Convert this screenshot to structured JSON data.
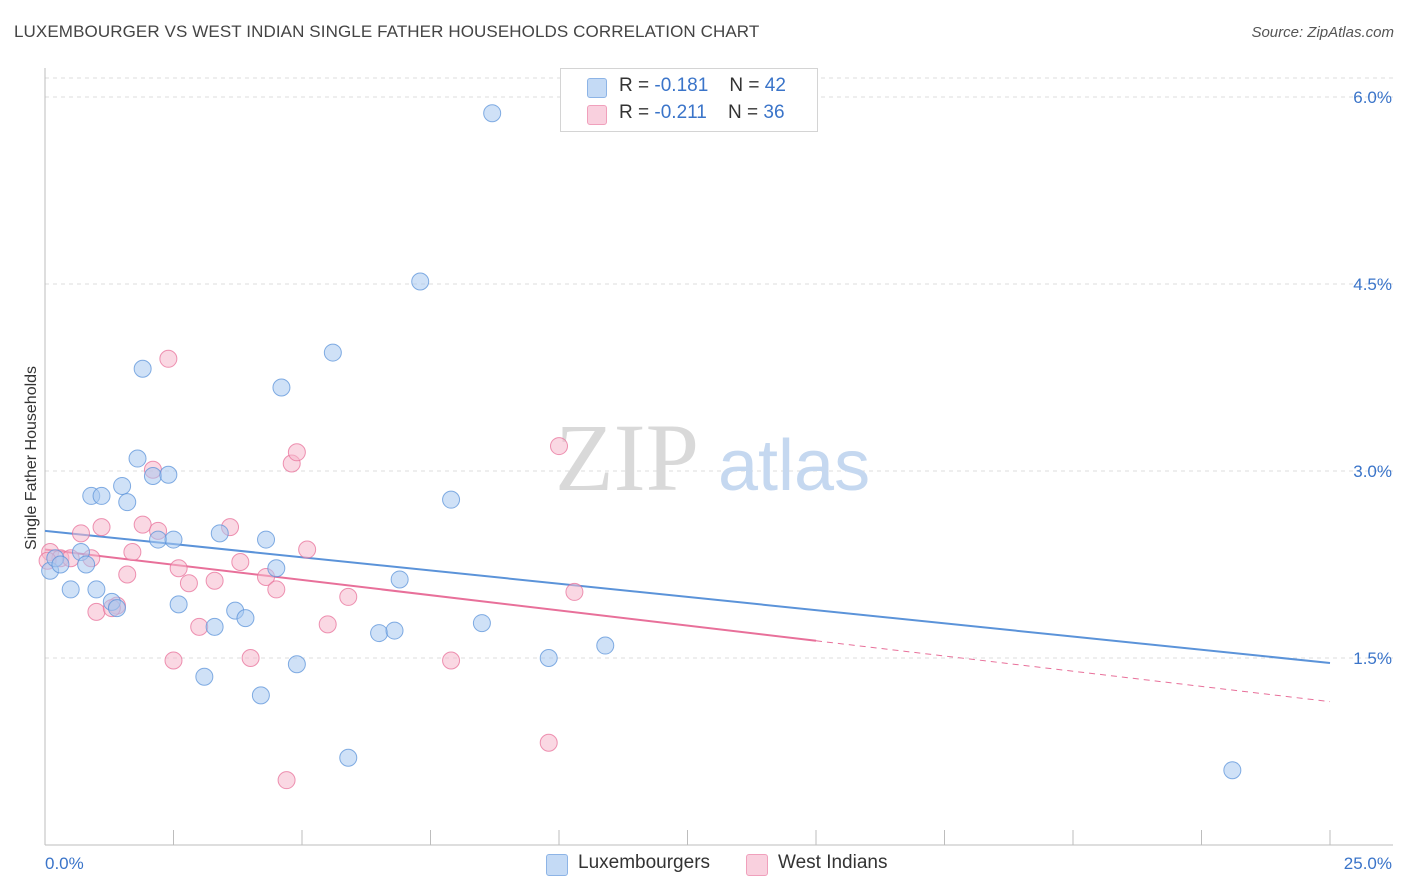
{
  "title": "LUXEMBOURGER VS WEST INDIAN SINGLE FATHER HOUSEHOLDS CORRELATION CHART",
  "source": "Source: ZipAtlas.com",
  "watermark": {
    "zip": "ZIP",
    "atlas": "atlas"
  },
  "legend": {
    "series1": {
      "r_label": "R =",
      "r_value": "-0.181",
      "n_label": "N =",
      "n_value": "42",
      "color": "#a8c8f0"
    },
    "series2": {
      "r_label": "R =",
      "r_value": "-0.211",
      "n_label": "N =",
      "n_value": "36",
      "color": "#f5b8cc"
    }
  },
  "bottom_legend": {
    "series1": "Luxembourgers",
    "series2": "West Indians"
  },
  "chart_data": {
    "type": "scatter",
    "title": "LUXEMBOURGER VS WEST INDIAN SINGLE FATHER HOUSEHOLDS CORRELATION CHART",
    "xlabel": "",
    "ylabel": "Single Father Households",
    "xlim": [
      0,
      25
    ],
    "ylim": [
      0,
      6.2
    ],
    "x_tick_labels": [
      "0.0%",
      "25.0%"
    ],
    "y_ticks": [
      1.5,
      3.0,
      4.5,
      6.0
    ],
    "y_tick_labels": [
      "1.5%",
      "3.0%",
      "4.5%",
      "6.0%"
    ],
    "series": [
      {
        "name": "Luxembourgers",
        "color": "#5b93d9",
        "fill": "#a8c8f0",
        "trend": {
          "x0": 0,
          "y0": 2.52,
          "x1": 25,
          "y1": 1.46,
          "solid_to": 25
        },
        "points": [
          [
            0.1,
            2.2
          ],
          [
            0.2,
            2.3
          ],
          [
            0.3,
            2.25
          ],
          [
            0.5,
            2.05
          ],
          [
            0.7,
            2.35
          ],
          [
            0.8,
            2.25
          ],
          [
            0.9,
            2.8
          ],
          [
            1.0,
            2.05
          ],
          [
            1.1,
            2.8
          ],
          [
            1.3,
            1.95
          ],
          [
            1.4,
            1.9
          ],
          [
            1.5,
            2.88
          ],
          [
            1.6,
            2.75
          ],
          [
            1.8,
            3.1
          ],
          [
            1.9,
            3.82
          ],
          [
            2.1,
            2.96
          ],
          [
            2.2,
            2.45
          ],
          [
            2.4,
            2.97
          ],
          [
            2.5,
            2.45
          ],
          [
            2.6,
            1.93
          ],
          [
            3.1,
            1.35
          ],
          [
            3.3,
            1.75
          ],
          [
            3.4,
            2.5
          ],
          [
            3.7,
            1.88
          ],
          [
            3.9,
            1.82
          ],
          [
            4.2,
            1.2
          ],
          [
            4.3,
            2.45
          ],
          [
            4.5,
            2.22
          ],
          [
            4.6,
            3.67
          ],
          [
            4.9,
            1.45
          ],
          [
            5.6,
            3.95
          ],
          [
            5.9,
            0.7
          ],
          [
            6.5,
            1.7
          ],
          [
            6.8,
            1.72
          ],
          [
            6.9,
            2.13
          ],
          [
            7.3,
            4.52
          ],
          [
            7.9,
            2.77
          ],
          [
            8.5,
            1.78
          ],
          [
            8.7,
            5.87
          ],
          [
            9.8,
            1.5
          ],
          [
            10.9,
            1.6
          ],
          [
            23.1,
            0.6
          ]
        ]
      },
      {
        "name": "West Indians",
        "color": "#e8709a",
        "fill": "#f5b8cc",
        "trend": {
          "x0": 0,
          "y0": 2.37,
          "x1": 25,
          "y1": 1.15,
          "solid_to": 15
        },
        "points": [
          [
            0.1,
            2.35
          ],
          [
            0.3,
            2.3
          ],
          [
            0.5,
            2.3
          ],
          [
            0.7,
            2.5
          ],
          [
            0.9,
            2.3
          ],
          [
            1.0,
            1.87
          ],
          [
            1.1,
            2.55
          ],
          [
            1.4,
            1.92
          ],
          [
            1.6,
            2.17
          ],
          [
            1.7,
            2.35
          ],
          [
            1.9,
            2.57
          ],
          [
            2.1,
            3.01
          ],
          [
            2.2,
            2.52
          ],
          [
            2.4,
            3.9
          ],
          [
            2.5,
            1.48
          ],
          [
            2.6,
            2.22
          ],
          [
            2.8,
            2.1
          ],
          [
            3.0,
            1.75
          ],
          [
            3.3,
            2.12
          ],
          [
            3.6,
            2.55
          ],
          [
            3.8,
            2.27
          ],
          [
            4.0,
            1.5
          ],
          [
            4.3,
            2.15
          ],
          [
            4.5,
            2.05
          ],
          [
            4.7,
            0.52
          ],
          [
            4.8,
            3.06
          ],
          [
            4.9,
            3.15
          ],
          [
            5.1,
            2.37
          ],
          [
            5.5,
            1.77
          ],
          [
            5.9,
            1.99
          ],
          [
            7.9,
            1.48
          ],
          [
            9.8,
            0.82
          ],
          [
            10.0,
            3.2
          ],
          [
            10.3,
            2.03
          ],
          [
            0.05,
            2.28
          ],
          [
            1.3,
            1.9
          ]
        ]
      }
    ]
  }
}
